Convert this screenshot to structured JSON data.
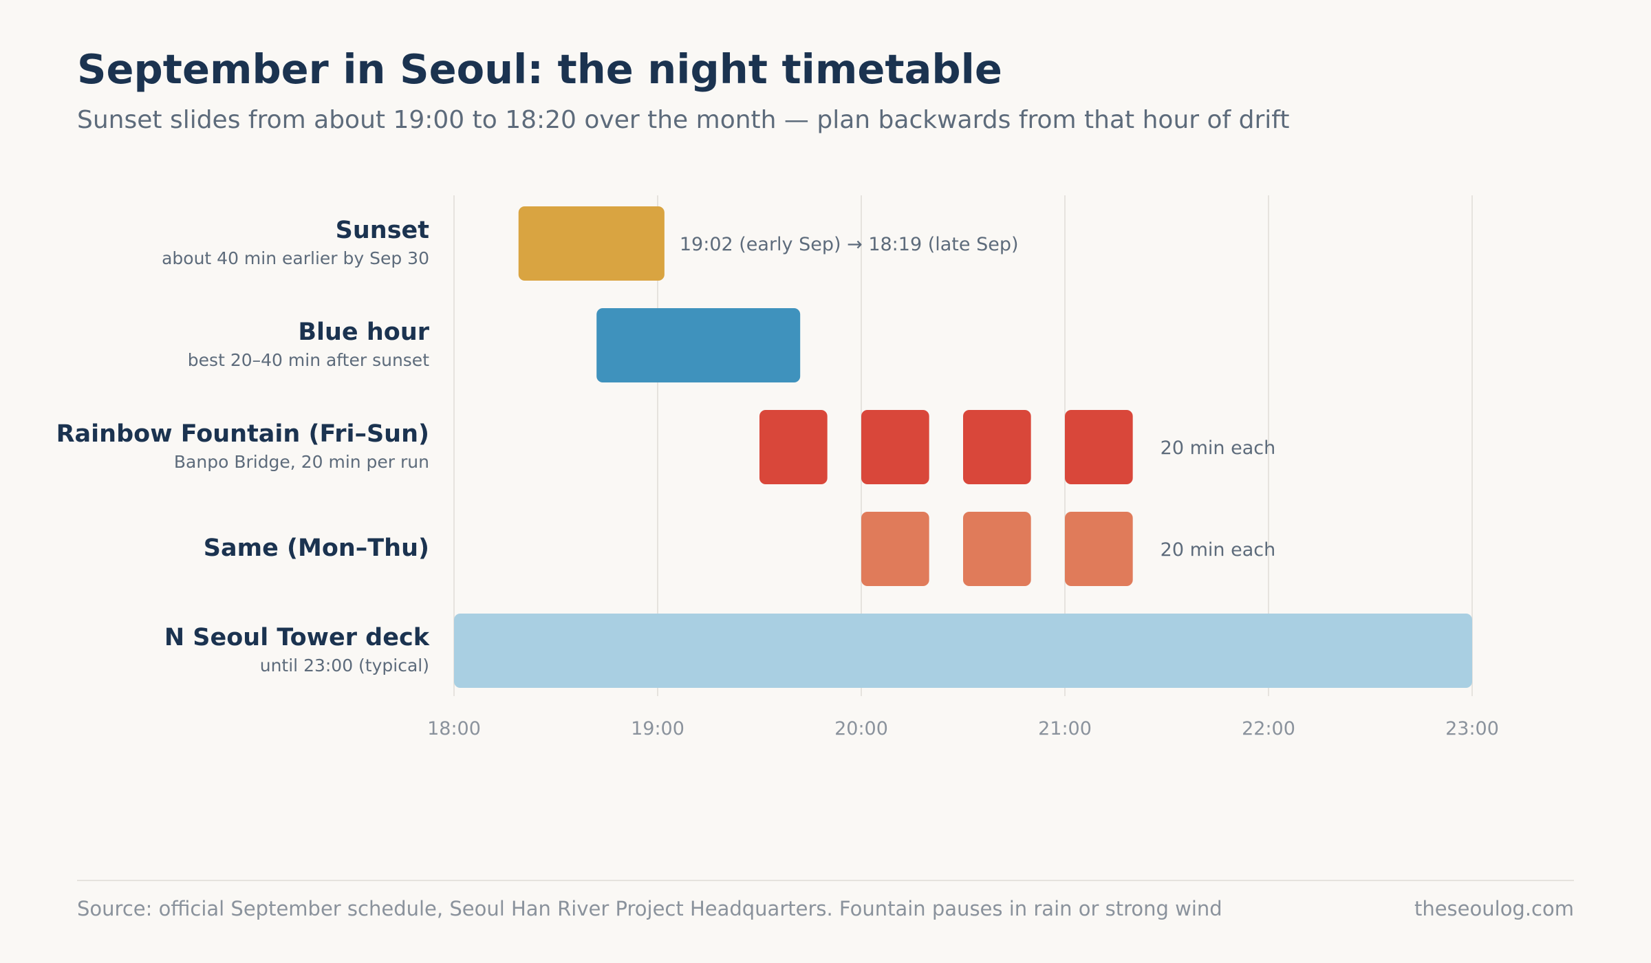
{
  "header": {
    "title": "September in Seoul: the night timetable",
    "subtitle": "Sunset slides from about 19:00 to 18:20 over the month — plan backwards from that hour of drift"
  },
  "footer": {
    "source": "Source: official September schedule, Seoul Han River Project Headquarters. Fountain pauses in rain or strong wind",
    "credit": "theseoulog.com"
  },
  "chart_data": {
    "type": "timeline",
    "x_axis": {
      "range": [
        "18:00",
        "23:00"
      ],
      "ticks": [
        "18:00",
        "19:00",
        "20:00",
        "21:00",
        "22:00",
        "23:00"
      ],
      "grid": true
    },
    "rows": [
      {
        "label": "Sunset",
        "sublabel": "about 40 min earlier by Sep 30",
        "color": "#d9a441",
        "segments": [
          {
            "start": "18:19",
            "end": "19:02"
          }
        ],
        "annotation": "19:02 (early Sep) → 18:19 (late Sep)"
      },
      {
        "label": "Blue hour",
        "sublabel": "best 20–40 min after sunset",
        "color": "#3f92bd",
        "segments": [
          {
            "start": "18:42",
            "end": "19:42"
          }
        ],
        "annotation": ""
      },
      {
        "label": "Rainbow Fountain (Fri–Sun)",
        "sublabel": "Banpo Bridge, 20 min per run",
        "color": "#d9473a",
        "segments": [
          {
            "start": "19:30",
            "end": "19:50"
          },
          {
            "start": "20:00",
            "end": "20:20"
          },
          {
            "start": "20:30",
            "end": "20:50"
          },
          {
            "start": "21:00",
            "end": "21:20"
          }
        ],
        "annotation": "20 min each"
      },
      {
        "label": "Same (Mon–Thu)",
        "sublabel": "",
        "color": "#e07b5a",
        "segments": [
          {
            "start": "20:00",
            "end": "20:20"
          },
          {
            "start": "20:30",
            "end": "20:50"
          },
          {
            "start": "21:00",
            "end": "21:20"
          }
        ],
        "annotation": "20 min each"
      },
      {
        "label": "N Seoul Tower deck",
        "sublabel": "until 23:00 (typical)",
        "color": "#a9cfe2",
        "segments": [
          {
            "start": "18:00",
            "end": "23:00"
          }
        ],
        "annotation": ""
      }
    ]
  }
}
